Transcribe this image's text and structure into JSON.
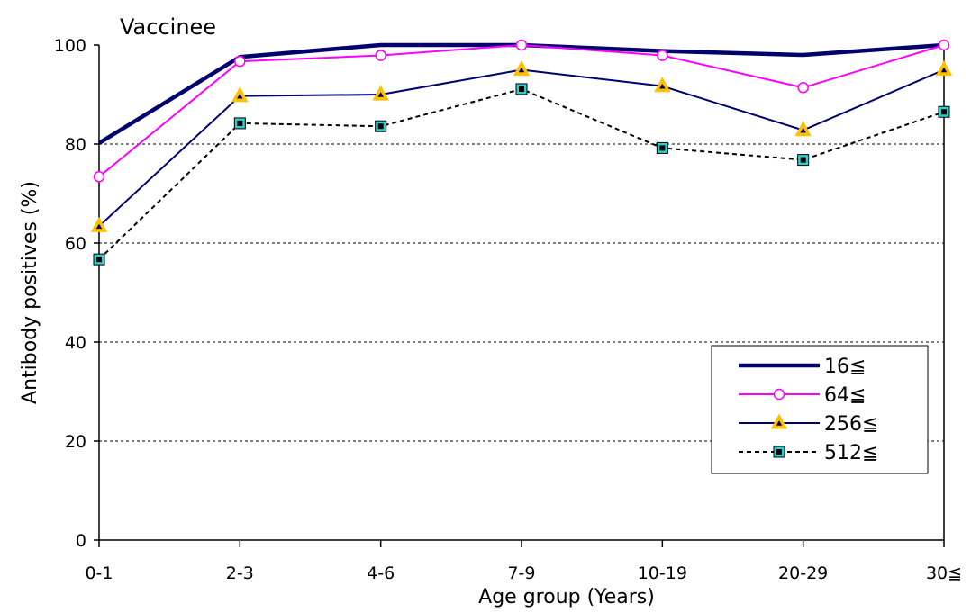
{
  "chart_data": {
    "type": "line",
    "title": "Vaccinee",
    "xlabel": "Age group (Years)",
    "ylabel": "Antibody positives (%)",
    "categories": [
      "0-1",
      "2-3",
      "4-6",
      "7-9",
      "10-19",
      "20-29",
      "30≦"
    ],
    "ylim": [
      0,
      100
    ],
    "yticks": [
      0,
      20,
      40,
      60,
      80,
      100
    ],
    "grid": "horizontal dashed",
    "legend_position": "bottom-right",
    "series": [
      {
        "name": "16≦",
        "values": [
          80.2,
          97.6,
          100,
          100,
          98.8,
          98.0,
          100
        ],
        "color": "#00006e",
        "marker": "none",
        "line": "solid-thick"
      },
      {
        "name": "64≦",
        "values": [
          73.4,
          96.7,
          97.9,
          100,
          97.9,
          91.4,
          100
        ],
        "color": "#ff00ff",
        "marker": "circle",
        "line": "solid"
      },
      {
        "name": "256≦",
        "values": [
          63.4,
          89.7,
          90.0,
          95.0,
          91.7,
          82.8,
          95.0
        ],
        "color": "#00006e",
        "marker": "triangle",
        "marker_fill": "#ffc000",
        "line": "solid"
      },
      {
        "name": "512≦",
        "values": [
          56.7,
          84.2,
          83.6,
          91.1,
          79.2,
          76.8,
          86.5
        ],
        "color": "#000000",
        "marker": "square",
        "marker_fill": "#33cccc",
        "line": "dashed"
      }
    ]
  }
}
